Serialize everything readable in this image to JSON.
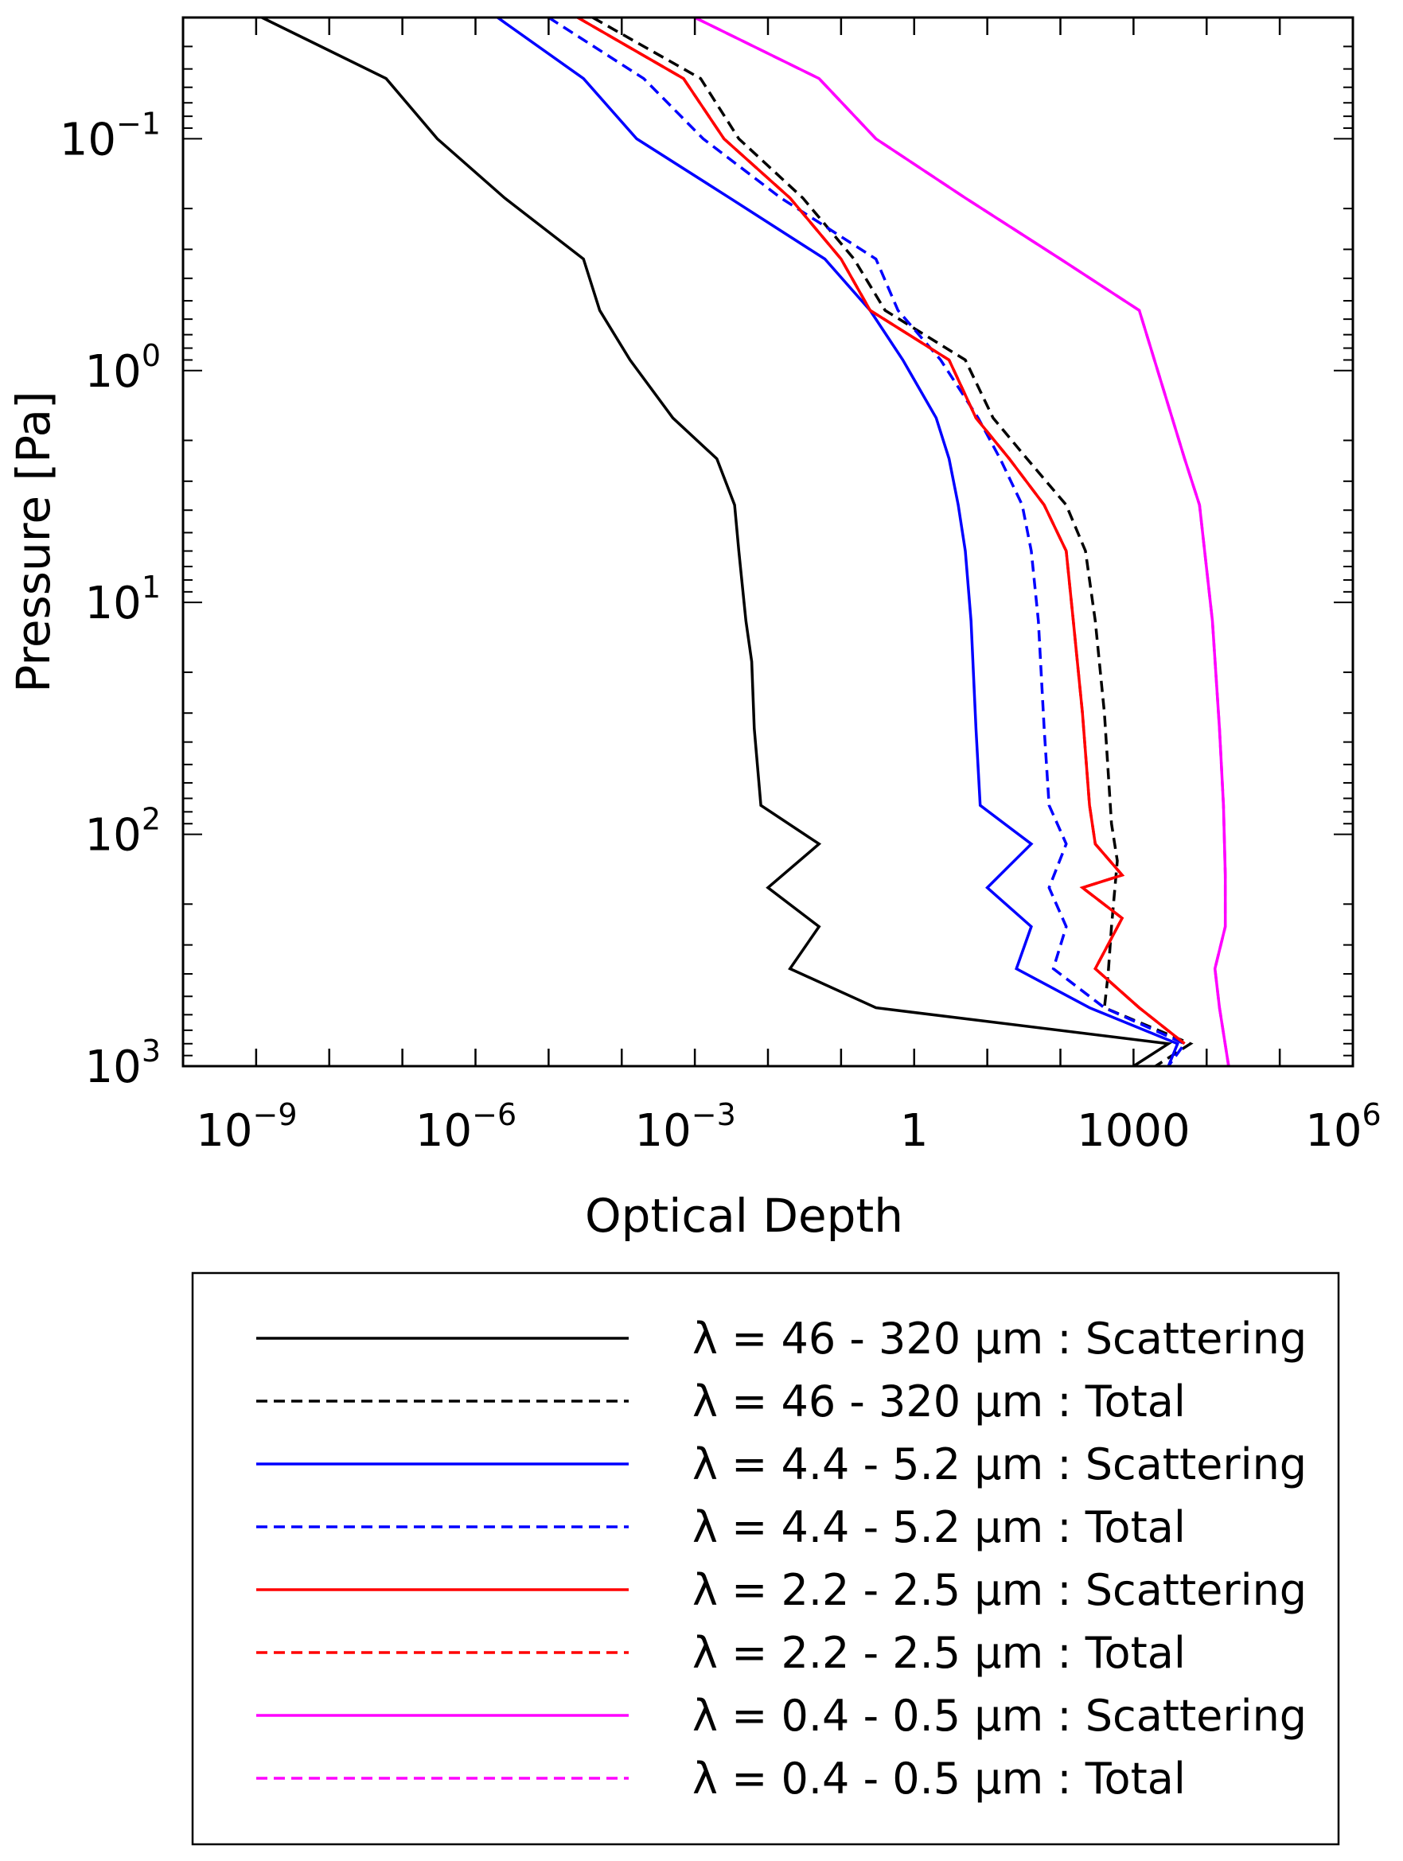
{
  "chart_data": {
    "type": "line",
    "title": "",
    "xlabel": "Optical Depth",
    "ylabel": "Pressure [Pa]",
    "x_scale": "log",
    "y_scale": "log",
    "y_inverted": true,
    "xlim": [
      1e-10,
      1000000.0
    ],
    "ylim": [
      0.03,
      1000
    ],
    "grid": false,
    "legend_position": "below",
    "x_ticks": [
      {
        "value": 1e-09,
        "base": "10",
        "exp": "−9"
      },
      {
        "value": 1e-06,
        "base": "10",
        "exp": "−6"
      },
      {
        "value": 0.001,
        "base": "10",
        "exp": "−3"
      },
      {
        "value": 1,
        "base": "1",
        "exp": ""
      },
      {
        "value": 1000,
        "base": "1000",
        "exp": ""
      },
      {
        "value": 1000000.0,
        "base": "10",
        "exp": "6"
      }
    ],
    "y_ticks": [
      {
        "value": 0.1,
        "base": "10",
        "exp": "−1"
      },
      {
        "value": 1,
        "base": "10",
        "exp": "0"
      },
      {
        "value": 10,
        "base": "10",
        "exp": "1"
      },
      {
        "value": 100,
        "base": "10",
        "exp": "2"
      },
      {
        "value": 1000,
        "base": "10",
        "exp": "3"
      }
    ],
    "series": [
      {
        "name": "λ = 46 - 320 μm : Scattering",
        "color": "#000000",
        "dash": "solid",
        "points": [
          [
            1.2e-09,
            0.03
          ],
          [
            6e-08,
            0.055
          ],
          [
            3e-07,
            0.1
          ],
          [
            2.5e-06,
            0.18
          ],
          [
            3e-05,
            0.33
          ],
          [
            5e-05,
            0.55
          ],
          [
            0.00013,
            0.9
          ],
          [
            0.0005,
            1.6
          ],
          [
            0.002,
            2.4
          ],
          [
            0.0035,
            3.8
          ],
          [
            0.004,
            6
          ],
          [
            0.005,
            12
          ],
          [
            0.006,
            18
          ],
          [
            0.0065,
            35
          ],
          [
            0.008,
            75
          ],
          [
            0.05,
            110
          ],
          [
            0.01,
            170
          ],
          [
            0.05,
            250
          ],
          [
            0.02,
            380
          ],
          [
            0.3,
            560
          ],
          [
            3000,
            800
          ],
          [
            1000,
            1000
          ]
        ]
      },
      {
        "name": "λ = 46 - 320 μm : Total",
        "color": "#000000",
        "dash": "dashed",
        "points": [
          [
            4e-05,
            0.03
          ],
          [
            0.0012,
            0.055
          ],
          [
            0.004,
            0.1
          ],
          [
            0.03,
            0.18
          ],
          [
            0.15,
            0.33
          ],
          [
            0.4,
            0.55
          ],
          [
            5,
            0.9
          ],
          [
            12,
            1.6
          ],
          [
            35,
            2.4
          ],
          [
            120,
            3.8
          ],
          [
            220,
            6
          ],
          [
            300,
            12
          ],
          [
            400,
            30
          ],
          [
            500,
            90
          ],
          [
            600,
            130
          ],
          [
            500,
            250
          ],
          [
            450,
            400
          ],
          [
            400,
            560
          ],
          [
            6000,
            800
          ],
          [
            2000,
            1000
          ]
        ]
      },
      {
        "name": "λ = 4.4 - 5.2 μm : Scattering",
        "color": "#0000ff",
        "dash": "solid",
        "points": [
          [
            2e-06,
            0.03
          ],
          [
            3e-05,
            0.055
          ],
          [
            0.00016,
            0.1
          ],
          [
            0.003,
            0.18
          ],
          [
            0.06,
            0.33
          ],
          [
            0.25,
            0.55
          ],
          [
            0.7,
            0.9
          ],
          [
            2,
            1.6
          ],
          [
            3,
            2.4
          ],
          [
            4,
            3.8
          ],
          [
            5,
            6
          ],
          [
            6,
            12
          ],
          [
            7,
            35
          ],
          [
            8,
            75
          ],
          [
            40,
            110
          ],
          [
            10,
            170
          ],
          [
            40,
            250
          ],
          [
            25,
            380
          ],
          [
            250,
            560
          ],
          [
            4000,
            800
          ],
          [
            3000,
            1000
          ]
        ]
      },
      {
        "name": "λ = 4.4 - 5.2 μm : Total",
        "color": "#0000ff",
        "dash": "dashed",
        "points": [
          [
            1e-05,
            0.03
          ],
          [
            0.0002,
            0.055
          ],
          [
            0.0013,
            0.1
          ],
          [
            0.015,
            0.18
          ],
          [
            0.3,
            0.33
          ],
          [
            0.6,
            0.55
          ],
          [
            2.3,
            0.9
          ],
          [
            7.5,
            1.6
          ],
          [
            15,
            2.4
          ],
          [
            30,
            3.8
          ],
          [
            40,
            6
          ],
          [
            50,
            12
          ],
          [
            60,
            35
          ],
          [
            70,
            75
          ],
          [
            120,
            110
          ],
          [
            70,
            170
          ],
          [
            120,
            250
          ],
          [
            80,
            380
          ],
          [
            400,
            560
          ],
          [
            5000,
            800
          ],
          [
            3000,
            1000
          ]
        ]
      },
      {
        "name": "λ = 2.2 - 2.5 μm : Scattering",
        "color": "#ff0000",
        "dash": "solid",
        "points": [
          [
            2.5e-05,
            0.03
          ],
          [
            0.0007,
            0.055
          ],
          [
            0.0025,
            0.1
          ],
          [
            0.02,
            0.18
          ],
          [
            0.1,
            0.33
          ],
          [
            0.25,
            0.55
          ],
          [
            3,
            0.9
          ],
          [
            7,
            1.6
          ],
          [
            20,
            2.4
          ],
          [
            60,
            3.8
          ],
          [
            120,
            6
          ],
          [
            150,
            12
          ],
          [
            200,
            30
          ],
          [
            250,
            75
          ],
          [
            300,
            110
          ],
          [
            700,
            150
          ],
          [
            200,
            170
          ],
          [
            700,
            230
          ],
          [
            300,
            380
          ],
          [
            1200,
            560
          ],
          [
            5000,
            800
          ]
        ]
      },
      {
        "name": "λ = 2.2 - 2.5 μm : Total",
        "color": "#ff0000",
        "dash": "dashed",
        "points": [
          [
            2.5e-05,
            0.03
          ],
          [
            0.0007,
            0.055
          ],
          [
            0.0025,
            0.1
          ],
          [
            0.02,
            0.18
          ],
          [
            0.1,
            0.33
          ],
          [
            0.25,
            0.55
          ],
          [
            3,
            0.9
          ],
          [
            7,
            1.6
          ],
          [
            20,
            2.4
          ],
          [
            60,
            3.8
          ],
          [
            120,
            6
          ],
          [
            150,
            12
          ],
          [
            200,
            30
          ],
          [
            250,
            75
          ],
          [
            300,
            110
          ],
          [
            700,
            150
          ],
          [
            200,
            170
          ],
          [
            700,
            230
          ],
          [
            300,
            380
          ],
          [
            1200,
            560
          ],
          [
            5000,
            800
          ]
        ]
      },
      {
        "name": "λ = 0.4 - 0.5 μm : Scattering",
        "color": "#ff00ff",
        "dash": "solid",
        "points": [
          [
            0.001,
            0.03
          ],
          [
            0.05,
            0.055
          ],
          [
            0.3,
            0.1
          ],
          [
            5,
            0.18
          ],
          [
            100,
            0.33
          ],
          [
            1200,
            0.55
          ],
          [
            5000,
            2.4
          ],
          [
            8000,
            3.8
          ],
          [
            12000,
            12
          ],
          [
            15000,
            35
          ],
          [
            17000,
            75
          ],
          [
            18000,
            150
          ],
          [
            18000,
            250
          ],
          [
            13000,
            380
          ],
          [
            15000,
            560
          ],
          [
            20000,
            1000
          ]
        ]
      },
      {
        "name": "λ = 0.4 - 0.5 μm : Total",
        "color": "#ff00ff",
        "dash": "dashed",
        "points": [
          [
            0.001,
            0.03
          ],
          [
            0.05,
            0.055
          ],
          [
            0.3,
            0.1
          ],
          [
            5,
            0.18
          ],
          [
            100,
            0.33
          ],
          [
            1200,
            0.55
          ],
          [
            5000,
            2.4
          ],
          [
            8000,
            3.8
          ],
          [
            12000,
            12
          ],
          [
            15000,
            35
          ],
          [
            17000,
            75
          ],
          [
            18000,
            150
          ],
          [
            18000,
            250
          ],
          [
            13000,
            380
          ],
          [
            15000,
            560
          ],
          [
            20000,
            1000
          ]
        ]
      }
    ]
  }
}
